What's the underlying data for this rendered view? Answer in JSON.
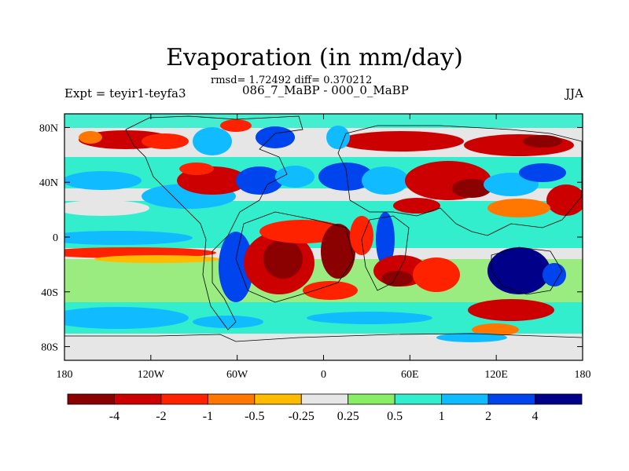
{
  "title": "Evaporation (in mm/day)",
  "stats": "rmsd= 1.72492 diff= 0.370212",
  "period": "086_7_MaBP - 000_0_MaBP",
  "experiment": "Expt = teyir1-teyfa3",
  "season": "JJA",
  "lat_ticks": [
    {
      "value": 80,
      "label": "80N"
    },
    {
      "value": 40,
      "label": "40N"
    },
    {
      "value": 0,
      "label": "0"
    },
    {
      "value": -40,
      "label": "40S"
    },
    {
      "value": -80,
      "label": "80S"
    }
  ],
  "lon_ticks": [
    {
      "value": -180,
      "label": "180"
    },
    {
      "value": -120,
      "label": "120W"
    },
    {
      "value": -60,
      "label": "60W"
    },
    {
      "value": 0,
      "label": "0"
    },
    {
      "value": 60,
      "label": "60E"
    },
    {
      "value": 120,
      "label": "120E"
    },
    {
      "value": 180,
      "label": "180"
    }
  ],
  "colorbar": {
    "labels": [
      "-4",
      "-2",
      "-1",
      "-0.5",
      "-0.25",
      "0.25",
      "0.5",
      "1",
      "2",
      "4"
    ],
    "colors": [
      "#8b0000",
      "#cc0000",
      "#ff2200",
      "#ff7700",
      "#ffbb00",
      "#e6e6e6",
      "#88ee66",
      "#33eecc",
      "#11bbff",
      "#0044ee",
      "#000088"
    ]
  },
  "map": {
    "background_color": "#e6e6e6",
    "extent": {
      "lon": [
        -180,
        180
      ],
      "lat": [
        -90,
        90
      ]
    }
  }
}
